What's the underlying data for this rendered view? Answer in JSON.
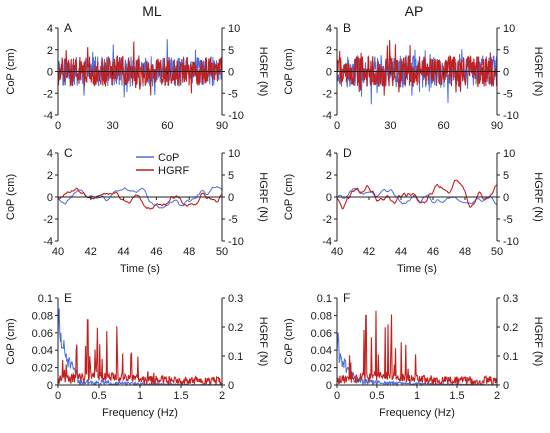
{
  "figure": {
    "column_titles": [
      "ML",
      "AP"
    ],
    "colors": {
      "cop": "#4a6fd8",
      "hgrf": "#c0211f",
      "axis": "#222222"
    }
  },
  "chart_data": [
    {
      "panel_letter": "A",
      "type": "line",
      "ylabel": "CoP (cm)",
      "ylabel_right": "HGRF (N)",
      "xlim": [
        0,
        90
      ],
      "xticks": [
        0,
        30,
        60,
        90
      ],
      "ylim": [
        -4,
        4
      ],
      "yticks": [
        -4,
        -2,
        0,
        2,
        4
      ],
      "ylim_right": [
        -10,
        10
      ],
      "yticks_right": [
        -10,
        -5,
        0,
        5,
        10
      ],
      "series": [
        {
          "key": "cop",
          "axis": "left",
          "x_range": [
            0,
            90
          ],
          "n": 360,
          "amplitude": 1.4,
          "style": "noise",
          "seed": 11,
          "clip": [
            -3.6,
            3.6
          ]
        },
        {
          "key": "hgrf",
          "axis": "right",
          "x_range": [
            0,
            90
          ],
          "n": 360,
          "amplitude": 3.4,
          "style": "noise",
          "seed": 12,
          "clip": [
            -9,
            9
          ]
        }
      ]
    },
    {
      "panel_letter": "B",
      "type": "line",
      "ylabel": "CoP (cm)",
      "ylabel_right": "HGRF (N)",
      "xlim": [
        0,
        90
      ],
      "xticks": [
        0,
        30,
        60,
        90
      ],
      "ylim": [
        -4,
        4
      ],
      "yticks": [
        -4,
        -2,
        0,
        2,
        4
      ],
      "ylim_right": [
        -10,
        10
      ],
      "yticks_right": [
        -10,
        -5,
        0,
        5,
        10
      ],
      "series": [
        {
          "key": "cop",
          "axis": "left",
          "x_range": [
            0,
            90
          ],
          "n": 360,
          "amplitude": 1.5,
          "style": "noise",
          "seed": 21,
          "clip": [
            -3.6,
            3.6
          ]
        },
        {
          "key": "hgrf",
          "axis": "right",
          "x_range": [
            0,
            90
          ],
          "n": 360,
          "amplitude": 3.5,
          "style": "noise",
          "seed": 22,
          "clip": [
            -9,
            9
          ]
        }
      ]
    },
    {
      "panel_letter": "C",
      "type": "line",
      "ylabel": "CoP (cm)",
      "ylabel_right": "HGRF (N)",
      "xlabel": "Time (s)",
      "xlim": [
        40,
        50
      ],
      "xticks": [
        40,
        42,
        44,
        46,
        48,
        50
      ],
      "ylim": [
        -4,
        4
      ],
      "yticks": [
        -4,
        -2,
        0,
        2,
        4
      ],
      "ylim_right": [
        -10,
        10
      ],
      "yticks_right": [
        -10,
        -5,
        0,
        5,
        10
      ],
      "legend": [
        "CoP",
        "HGRF"
      ],
      "series": [
        {
          "key": "cop",
          "axis": "left",
          "x_range": [
            40,
            50
          ],
          "n": 220,
          "amplitude": 0.5,
          "style": "smooth",
          "seed": 31,
          "clip": [
            -1,
            1
          ]
        },
        {
          "key": "hgrf",
          "axis": "right",
          "x_range": [
            40,
            50
          ],
          "n": 220,
          "amplitude": 1.6,
          "style": "smooth",
          "seed": 32,
          "clip": [
            -4,
            4
          ]
        }
      ]
    },
    {
      "panel_letter": "D",
      "type": "line",
      "ylabel": "CoP (cm)",
      "ylabel_right": "HGRF (N)",
      "xlabel": "Time (s)",
      "xlim": [
        40,
        50
      ],
      "xticks": [
        40,
        42,
        44,
        46,
        48,
        50
      ],
      "ylim": [
        -4,
        4
      ],
      "yticks": [
        -4,
        -2,
        0,
        2,
        4
      ],
      "ylim_right": [
        -10,
        10
      ],
      "yticks_right": [
        -10,
        -5,
        0,
        5,
        10
      ],
      "series": [
        {
          "key": "cop",
          "axis": "left",
          "x_range": [
            40,
            50
          ],
          "n": 220,
          "amplitude": 0.45,
          "style": "smooth",
          "seed": 41,
          "clip": [
            -1,
            1
          ]
        },
        {
          "key": "hgrf",
          "axis": "right",
          "x_range": [
            40,
            50
          ],
          "n": 220,
          "amplitude": 1.8,
          "style": "smooth",
          "seed": 42,
          "clip": [
            -4,
            6.5
          ]
        }
      ]
    },
    {
      "panel_letter": "E",
      "type": "line",
      "ylabel": "CoP (cm)",
      "ylabel_right": "HGRF (N)",
      "xlabel": "Frequency (Hz)",
      "xlim": [
        0,
        2
      ],
      "xticks": [
        0,
        0.5,
        1,
        1.5,
        2
      ],
      "ylim": [
        0,
        0.1
      ],
      "yticks": [
        0,
        0.02,
        0.04,
        0.06,
        0.08,
        0.1
      ],
      "ylim_right": [
        0,
        0.3
      ],
      "yticks_right": [
        0,
        0.1,
        0.2,
        0.3
      ],
      "series": [
        {
          "key": "cop",
          "axis": "left",
          "x_range": [
            0,
            2
          ],
          "n": 280,
          "amplitude": 0.012,
          "style": "spectrum_low",
          "seed": 51,
          "peak": 0.088,
          "clip": [
            0,
            0.1
          ]
        },
        {
          "key": "hgrf",
          "axis": "right",
          "x_range": [
            0,
            2
          ],
          "n": 280,
          "amplitude": 0.05,
          "style": "spectrum_mid",
          "seed": 52,
          "peak": 0.225,
          "clip": [
            0,
            0.3
          ]
        }
      ]
    },
    {
      "panel_letter": "F",
      "type": "line",
      "ylabel": "CoP (cm)",
      "ylabel_right": "HGRF (N)",
      "xlabel": "Frequency (Hz)",
      "xlim": [
        0,
        2
      ],
      "xticks": [
        0,
        0.5,
        1,
        1.5,
        2
      ],
      "ylim": [
        0,
        0.1
      ],
      "yticks": [
        0,
        0.02,
        0.04,
        0.06,
        0.08,
        0.1
      ],
      "ylim_right": [
        0,
        0.3
      ],
      "yticks_right": [
        0,
        0.1,
        0.2,
        0.3
      ],
      "series": [
        {
          "key": "cop",
          "axis": "left",
          "x_range": [
            0,
            2
          ],
          "n": 280,
          "amplitude": 0.012,
          "style": "spectrum_low",
          "seed": 61,
          "peak": 0.06,
          "clip": [
            0,
            0.1
          ]
        },
        {
          "key": "hgrf",
          "axis": "right",
          "x_range": [
            0,
            2
          ],
          "n": 280,
          "amplitude": 0.05,
          "style": "spectrum_mid",
          "seed": 62,
          "peak": 0.24,
          "clip": [
            0,
            0.3
          ]
        }
      ]
    }
  ]
}
